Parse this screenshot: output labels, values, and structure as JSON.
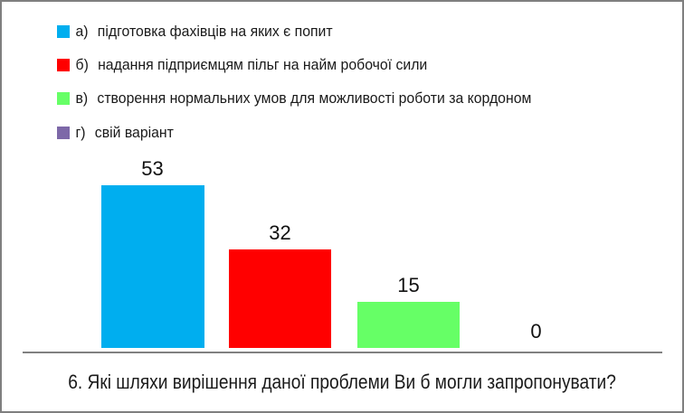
{
  "chart_data": {
    "type": "bar",
    "title": "6. Які шляхи вирішення даної проблеми Ви б могли запропонувати?",
    "categories": [
      "а) підготовка фахівців на яких є попит",
      "б) надання підприємцям пільг на найм робочої сили",
      "в) створення нормальних умов для можливості роботи за кордоном",
      "г) свій варіант"
    ],
    "values": [
      53,
      32,
      15,
      0
    ],
    "colors": [
      "#00AEEF",
      "#FF0000",
      "#66FF66",
      "#7D68A8"
    ],
    "ylim": [
      0,
      55
    ],
    "xlabel": "",
    "ylabel": "",
    "grid": false,
    "legend_position": "top-left",
    "axis_color": "#808080",
    "background": "#FFFFFF"
  },
  "legend": {
    "items": [
      {
        "key": "а)",
        "text": "підготовка фахівців на яких є попит",
        "color": "#00AEEF"
      },
      {
        "key": "б)",
        "text": "надання підприємцям пільг на найм робочої сили",
        "color": "#FF0000"
      },
      {
        "key": "в)",
        "text": "створення нормальних умов для можливості роботи за кордоном",
        "color": "#66FF66"
      },
      {
        "key": "г)",
        "text": "свій варіант",
        "color": "#7D68A8"
      }
    ]
  }
}
